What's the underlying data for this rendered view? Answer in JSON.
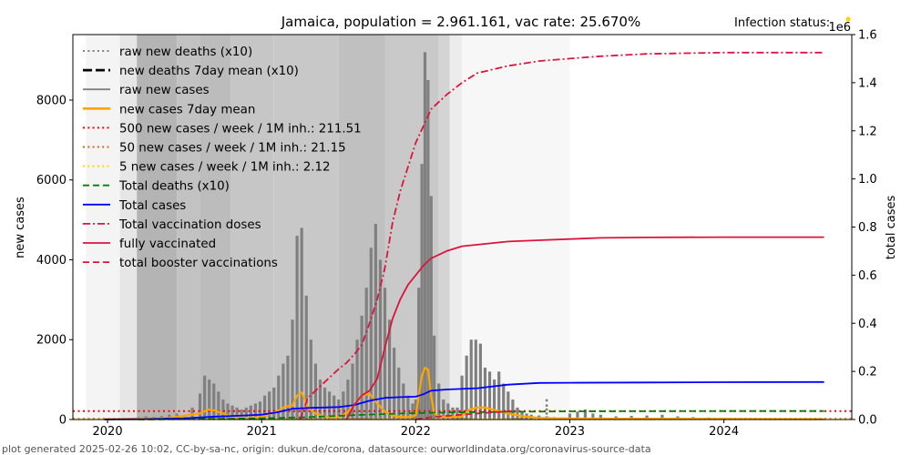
{
  "chart_data": {
    "type": "bar+line",
    "title": "Jamaica, population = 2.961.161, vac rate: 25.670%",
    "infection_status_label": "Infection status:",
    "infection_status_color": "#ffd700",
    "xlabel": "",
    "ylabel_left": "new cases",
    "ylabel_right": "total cases",
    "right_axis_multiplier": "1e6",
    "xlim": [
      2019.775,
      2024.83
    ],
    "ylim_left": [
      0,
      9640
    ],
    "ylim_right": [
      0,
      1.6
    ],
    "x_ticks": [
      2020,
      2021,
      2022,
      2023,
      2024
    ],
    "x_tick_labels": [
      "2020",
      "2021",
      "2022",
      "2023",
      "2024"
    ],
    "y_left_ticks": [
      0,
      2000,
      4000,
      6000,
      8000
    ],
    "y_left_tick_labels": [
      "0",
      "2000",
      "4000",
      "6000",
      "8000"
    ],
    "y_right_ticks": [
      0.0,
      0.2,
      0.4,
      0.6,
      0.8,
      1.0,
      1.2,
      1.4,
      1.6
    ],
    "y_right_tick_labels": [
      "0.0",
      "0.2",
      "0.4",
      "0.6",
      "0.8",
      "1.0",
      "1.2",
      "1.4",
      "1.6"
    ],
    "legend_position": "upper-left",
    "legend": [
      {
        "label": "raw new deaths (x10)",
        "color": "#808080",
        "style": "dotted"
      },
      {
        "label": "new deaths 7day mean (x10)",
        "color": "#000000",
        "style": "dashed-thick"
      },
      {
        "label": "raw new cases",
        "color": "#808080",
        "style": "solid"
      },
      {
        "label": "new cases 7day mean",
        "color": "#ffa500",
        "style": "solid-thick"
      },
      {
        "label": "500 new cases / week / 1M inh.: 211.51",
        "color": "#ff0000",
        "style": "dotted"
      },
      {
        "label": "50 new cases / week / 1M inh.: 21.15",
        "color": "#d2691e",
        "style": "dotted"
      },
      {
        "label": "5 new cases / week / 1M inh.: 2.12",
        "color": "#ffd700",
        "style": "dotted"
      },
      {
        "label": "Total deaths (x10)",
        "color": "#008000",
        "style": "dashed"
      },
      {
        "label": "Total cases",
        "color": "#0000ff",
        "style": "solid"
      },
      {
        "label": "Total vaccination doses",
        "color": "#dc143c",
        "style": "dashdot"
      },
      {
        "label": "fully vaccinated",
        "color": "#dc143c",
        "style": "solid"
      },
      {
        "label": "total booster vaccinations",
        "color": "#dc143c",
        "style": "dashed"
      }
    ],
    "threshold_lines": [
      211.51,
      21.15,
      2.12
    ],
    "background_bands": [
      {
        "from": 2019.86,
        "to": 2020.08,
        "shade": "#f4f4f4"
      },
      {
        "from": 2020.08,
        "to": 2020.19,
        "shade": "#e6e6e6"
      },
      {
        "from": 2020.19,
        "to": 2020.45,
        "shade": "#b4b4b4"
      },
      {
        "from": 2020.45,
        "to": 2020.6,
        "shade": "#c2c2c2"
      },
      {
        "from": 2020.6,
        "to": 2020.8,
        "shade": "#bcbcbc"
      },
      {
        "from": 2020.8,
        "to": 2021.08,
        "shade": "#c6c6c6"
      },
      {
        "from": 2021.08,
        "to": 2021.5,
        "shade": "#c8c8c8"
      },
      {
        "from": 2021.5,
        "to": 2021.8,
        "shade": "#c0c0c0"
      },
      {
        "from": 2021.8,
        "to": 2022.15,
        "shade": "#c9c9c9"
      },
      {
        "from": 2022.15,
        "to": 2022.22,
        "shade": "#d4d4d4"
      },
      {
        "from": 2022.22,
        "to": 2022.3,
        "shade": "#ececec"
      },
      {
        "from": 2022.3,
        "to": 2023.0,
        "shade": "#f7f7f7"
      }
    ],
    "series": [
      {
        "name": "raw new cases",
        "axis": "left",
        "type": "bar",
        "x": [
          2020.2,
          2020.25,
          2020.3,
          2020.35,
          2020.4,
          2020.45,
          2020.5,
          2020.55,
          2020.6,
          2020.63,
          2020.66,
          2020.69,
          2020.72,
          2020.75,
          2020.78,
          2020.81,
          2020.84,
          2020.87,
          2020.9,
          2020.93,
          2020.96,
          2020.99,
          2021.02,
          2021.05,
          2021.08,
          2021.11,
          2021.14,
          2021.17,
          2021.2,
          2021.23,
          2021.26,
          2021.29,
          2021.32,
          2021.35,
          2021.38,
          2021.41,
          2021.44,
          2021.47,
          2021.5,
          2021.53,
          2021.56,
          2021.59,
          2021.62,
          2021.65,
          2021.68,
          2021.71,
          2021.74,
          2021.77,
          2021.8,
          2021.83,
          2021.86,
          2021.89,
          2021.92,
          2021.95,
          2021.98,
          2022.0,
          2022.02,
          2022.04,
          2022.06,
          2022.08,
          2022.1,
          2022.12,
          2022.15,
          2022.18,
          2022.21,
          2022.24,
          2022.27,
          2022.3,
          2022.33,
          2022.36,
          2022.39,
          2022.42,
          2022.45,
          2022.48,
          2022.51,
          2022.54,
          2022.57,
          2022.6,
          2022.63,
          2022.66,
          2022.69,
          2022.72,
          2022.75,
          2022.8,
          2022.85,
          2022.9,
          2022.95,
          2023.0,
          2023.05,
          2023.1,
          2023.15,
          2023.2,
          2023.3,
          2023.4,
          2023.5,
          2023.6,
          2023.7,
          2023.8,
          2023.9,
          2024.0,
          2024.2,
          2024.4,
          2024.6
        ],
        "values": [
          60,
          80,
          70,
          90,
          120,
          150,
          60,
          300,
          650,
          1100,
          1000,
          900,
          700,
          500,
          400,
          350,
          300,
          250,
          300,
          350,
          400,
          450,
          600,
          700,
          800,
          1100,
          1400,
          1600,
          2500,
          4600,
          4800,
          3100,
          2000,
          1400,
          1000,
          800,
          700,
          600,
          500,
          700,
          1000,
          1400,
          2000,
          2600,
          3300,
          4300,
          4900,
          4000,
          3300,
          2500,
          1800,
          1300,
          900,
          600,
          400,
          500,
          3300,
          6400,
          9200,
          8500,
          5600,
          2100,
          900,
          500,
          400,
          300,
          300,
          1100,
          1600,
          2000,
          2000,
          1900,
          1300,
          1200,
          1000,
          1200,
          900,
          700,
          500,
          300,
          200,
          150,
          120,
          100,
          80,
          60,
          50,
          150,
          200,
          250,
          150,
          120,
          80,
          90,
          100,
          120,
          80,
          60,
          50,
          40,
          30,
          25,
          20
        ]
      },
      {
        "name": "new cases 7day mean",
        "axis": "left",
        "type": "line",
        "x": [
          2019.98,
          2020.2,
          2020.4,
          2020.6,
          2020.65,
          2020.7,
          2020.75,
          2020.8,
          2020.9,
          2021.0,
          2021.1,
          2021.15,
          2021.2,
          2021.23,
          2021.26,
          2021.3,
          2021.35,
          2021.4,
          2021.45,
          2021.5,
          2021.55,
          2021.6,
          2021.65,
          2021.7,
          2021.75,
          2021.8,
          2021.85,
          2021.9,
          2021.95,
          2022.0,
          2022.02,
          2022.04,
          2022.06,
          2022.08,
          2022.1,
          2022.12,
          2022.15,
          2022.2,
          2022.3,
          2022.35,
          2022.4,
          2022.45,
          2022.5,
          2022.55,
          2022.6,
          2022.7,
          2022.8,
          2022.9,
          2023.0,
          2023.5,
          2024.0,
          2024.5,
          2024.65
        ],
        "values": [
          10,
          20,
          40,
          150,
          250,
          220,
          150,
          60,
          40,
          60,
          200,
          320,
          350,
          600,
          680,
          300,
          150,
          80,
          60,
          60,
          150,
          350,
          600,
          650,
          400,
          200,
          100,
          60,
          60,
          100,
          600,
          1100,
          1300,
          1250,
          600,
          150,
          80,
          60,
          80,
          250,
          300,
          300,
          250,
          200,
          150,
          80,
          40,
          30,
          25,
          20,
          15,
          10,
          10
        ]
      },
      {
        "name": "Total cases",
        "axis": "right",
        "type": "line",
        "x": [
          2019.98,
          2020.2,
          2020.5,
          2020.7,
          2020.9,
          2021.0,
          2021.1,
          2021.2,
          2021.3,
          2021.4,
          2021.5,
          2021.6,
          2021.7,
          2021.8,
          2021.9,
          2022.0,
          2022.05,
          2022.1,
          2022.2,
          2022.4,
          2022.6,
          2022.8,
          2023.0,
          2023.5,
          2024.0,
          2024.65
        ],
        "values": [
          0,
          0.001,
          0.005,
          0.012,
          0.017,
          0.02,
          0.03,
          0.045,
          0.048,
          0.05,
          0.052,
          0.06,
          0.078,
          0.09,
          0.093,
          0.095,
          0.105,
          0.12,
          0.125,
          0.13,
          0.145,
          0.152,
          0.153,
          0.154,
          0.155,
          0.156
        ]
      },
      {
        "name": "Total deaths (x10)",
        "axis": "right",
        "type": "line",
        "x": [
          2020.2,
          2020.6,
          2021.0,
          2021.3,
          2021.6,
          2021.9,
          2022.1,
          2022.3,
          2022.6,
          2022.8,
          2023.0,
          2024.0,
          2024.65
        ],
        "values": [
          0,
          0.002,
          0.005,
          0.01,
          0.018,
          0.025,
          0.028,
          0.03,
          0.032,
          0.033,
          0.034,
          0.035,
          0.035
        ]
      },
      {
        "name": "Total vaccination doses",
        "axis": "right",
        "type": "line",
        "x": [
          2021.25,
          2021.3,
          2021.35,
          2021.4,
          2021.45,
          2021.5,
          2021.55,
          2021.6,
          2021.65,
          2021.7,
          2021.75,
          2021.8,
          2021.85,
          2021.9,
          2021.95,
          2022.0,
          2022.05,
          2022.1,
          2022.2,
          2022.3,
          2022.4,
          2022.6,
          2022.8,
          2023.0,
          2023.2,
          2023.5,
          2024.0,
          2024.65
        ],
        "values": [
          0.0,
          0.09,
          0.12,
          0.15,
          0.18,
          0.21,
          0.235,
          0.27,
          0.31,
          0.4,
          0.5,
          0.63,
          0.82,
          0.95,
          1.05,
          1.15,
          1.22,
          1.29,
          1.35,
          1.4,
          1.44,
          1.47,
          1.49,
          1.5,
          1.51,
          1.52,
          1.525,
          1.525
        ]
      },
      {
        "name": "fully vaccinated",
        "axis": "right",
        "type": "line",
        "x": [
          2021.55,
          2021.6,
          2021.65,
          2021.7,
          2021.75,
          2021.8,
          2021.85,
          2021.9,
          2021.95,
          2022.0,
          2022.05,
          2022.1,
          2022.2,
          2022.3,
          2022.45,
          2022.6,
          2022.8,
          2023.0,
          2023.2,
          2023.5,
          2024.0,
          2024.65
        ],
        "values": [
          0.0,
          0.06,
          0.1,
          0.12,
          0.17,
          0.3,
          0.42,
          0.5,
          0.56,
          0.6,
          0.64,
          0.67,
          0.7,
          0.72,
          0.73,
          0.74,
          0.745,
          0.75,
          0.755,
          0.757,
          0.758,
          0.758
        ]
      },
      {
        "name": "total booster vaccinations",
        "axis": "right",
        "type": "line",
        "x": [
          2022.0,
          2022.1,
          2022.3,
          2022.5,
          2022.65
        ],
        "values": [
          0.0,
          0.01,
          0.02,
          0.03,
          0.035
        ]
      },
      {
        "name": "raw new deaths (x10)",
        "axis": "left",
        "type": "scatter",
        "x": [
          2022.85,
          2022.85,
          2022.85,
          2022.85
        ],
        "values": [
          150,
          250,
          350,
          480
        ]
      }
    ]
  },
  "footer": "plot generated 2025-02-26 10:02, CC-by-sa-nc, origin: dukun.de/corona, datasource: ourworldindata.org/coronavirus-source-data"
}
